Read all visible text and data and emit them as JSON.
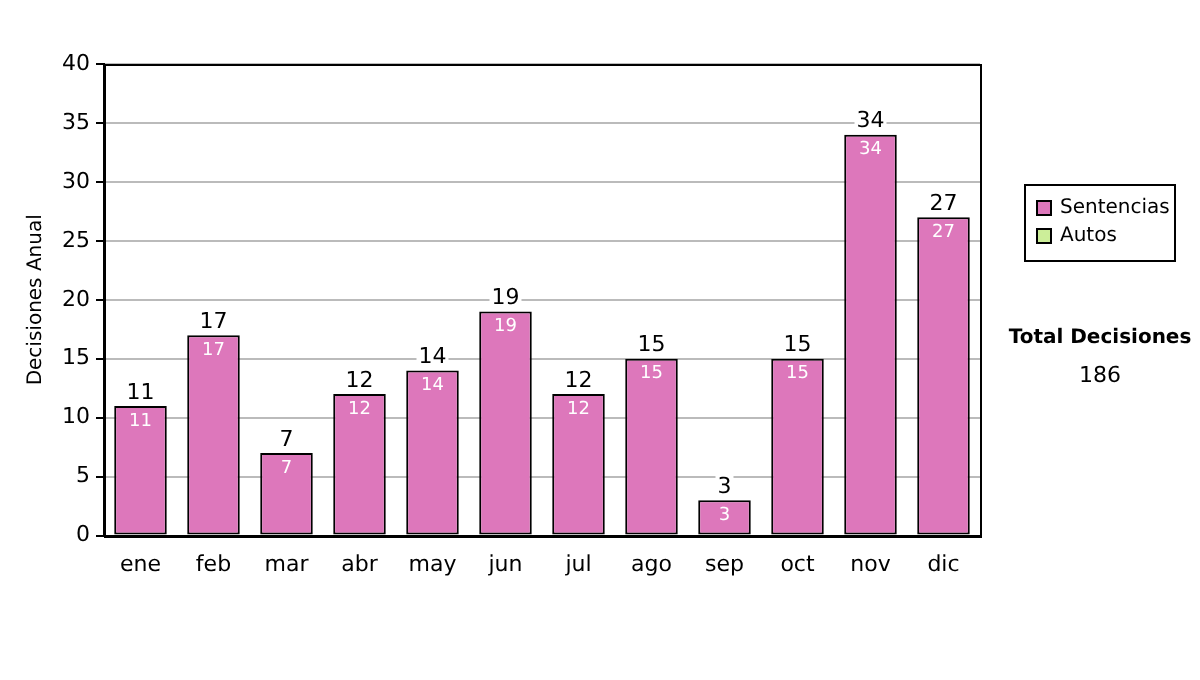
{
  "chart_data": {
    "type": "bar",
    "stacked": true,
    "ylabel": "Decisiones Anual",
    "categories": [
      "ene",
      "feb",
      "mar",
      "abr",
      "may",
      "jun",
      "jul",
      "ago",
      "sep",
      "oct",
      "nov",
      "dic"
    ],
    "series": [
      {
        "name": "Sentencias",
        "color": "#dd77bb",
        "values": [
          11,
          17,
          7,
          12,
          14,
          19,
          12,
          15,
          3,
          15,
          34,
          27
        ],
        "value_labels": [
          "11",
          "17",
          "7",
          "12",
          "14",
          "19",
          "12",
          "15",
          "3",
          "15",
          "34",
          "27"
        ]
      },
      {
        "name": "Autos",
        "color": "#ccee99",
        "values": [
          0,
          0,
          0,
          0,
          0,
          0,
          0,
          0,
          0,
          0,
          0,
          0
        ]
      }
    ],
    "totals": [
      "11",
      "17",
      "7",
      "12",
      "14",
      "19",
      "12",
      "15",
      "3",
      "15",
      "34",
      "27"
    ],
    "ylim": [
      0,
      40
    ],
    "yticks": [
      0,
      5,
      10,
      15,
      20,
      25,
      30,
      35,
      40
    ],
    "grid": "y",
    "legend": "right",
    "annotations": [
      "Total Decisiones",
      "186"
    ]
  }
}
